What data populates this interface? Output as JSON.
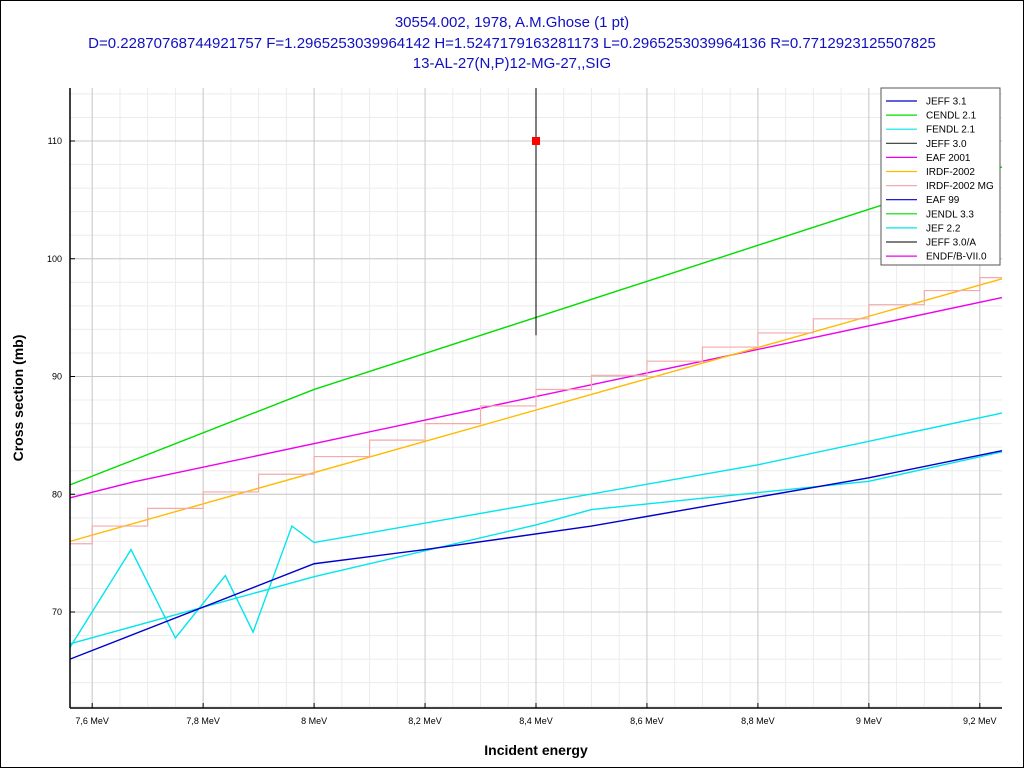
{
  "chart_data": {
    "type": "line",
    "title": [
      "30554.002, 1978, A.M.Ghose (1 pt)",
      "D=0.22870768744921757 F=1.2965253039964142 H=1.5247179163281173 L=0.2965253039964136 R=0.7712923125507825",
      "13-AL-27(N,P)12-MG-27,,SIG"
    ],
    "xlabel": "Incident energy",
    "ylabel": "Cross section (mb)",
    "xlim": [
      7.56,
      9.24
    ],
    "ylim": [
      61.85,
      114.5
    ],
    "xticks": [
      7.6,
      7.8,
      8.0,
      8.2,
      8.4,
      8.6,
      8.8,
      9.0,
      9.2
    ],
    "xtick_labels": [
      "7,6 MeV",
      "7,8 MeV",
      "8 MeV",
      "8,2 MeV",
      "8,4 MeV",
      "8,6 MeV",
      "8,8 MeV",
      "9 MeV",
      "9,2 MeV"
    ],
    "yticks": [
      70,
      80,
      90,
      100,
      110
    ],
    "yticks_labels": [
      "70",
      "80",
      "90",
      "100",
      "110"
    ],
    "grid": true,
    "legend_position": "top-right",
    "legend": [
      {
        "name": "JEFF 3.1",
        "color": "#0000cc"
      },
      {
        "name": "CENDL 2.1",
        "color": "#00dd00"
      },
      {
        "name": "FENDL 2.1",
        "color": "#00e5ee"
      },
      {
        "name": "JEFF 3.0",
        "color": "#333333"
      },
      {
        "name": "EAF 2001",
        "color": "#ee00ee"
      },
      {
        "name": "IRDF-2002",
        "color": "#ffbb00"
      },
      {
        "name": "IRDF-2002 MG",
        "color": "#f4aaaa"
      },
      {
        "name": "EAF 99",
        "color": "#0000cc"
      },
      {
        "name": "JENDL 3.3",
        "color": "#00dd00"
      },
      {
        "name": "JEF 2.2",
        "color": "#00e5ee"
      },
      {
        "name": "JEFF 3.0/A",
        "color": "#333333"
      },
      {
        "name": "ENDF/B-VII.0",
        "color": "#ee00ee"
      }
    ],
    "series": [
      {
        "name": "CENDL 2.1",
        "color": "#00dd00",
        "x": [
          7.56,
          8.0,
          9.0,
          9.24
        ],
        "y": [
          80.8,
          88.9,
          104.2,
          107.8
        ]
      },
      {
        "name": "EAF 2001",
        "color": "#ee00ee",
        "x": [
          7.56,
          7.67,
          9.24
        ],
        "y": [
          79.7,
          81.0,
          96.7
        ]
      },
      {
        "name": "IRDF-2002",
        "color": "#ffbb00",
        "x": [
          7.56,
          9.24
        ],
        "y": [
          76.0,
          98.3
        ]
      },
      {
        "name": "IRDF-2002 MG",
        "color": "#f4aaaa",
        "step": true,
        "x": [
          7.56,
          7.6,
          7.7,
          7.8,
          7.9,
          8.0,
          8.1,
          8.2,
          8.3,
          8.4,
          8.5,
          8.6,
          8.7,
          8.8,
          8.9,
          9.0,
          9.1,
          9.2,
          9.24
        ],
        "y": [
          75.8,
          77.3,
          78.8,
          80.2,
          81.7,
          83.2,
          84.6,
          86.0,
          87.5,
          88.9,
          90.1,
          91.3,
          92.5,
          93.7,
          94.9,
          96.1,
          97.3,
          98.4,
          98.4
        ]
      },
      {
        "name": "FENDL 2.1",
        "color": "#00e5ee",
        "x": [
          7.56,
          7.67,
          7.75,
          7.84,
          7.89,
          7.96,
          8.0,
          8.8,
          9.24
        ],
        "y": [
          67.0,
          75.3,
          67.8,
          73.1,
          68.3,
          77.3,
          75.9,
          82.5,
          86.9
        ]
      },
      {
        "name": "JEF 2.2",
        "color": "#00e5ee",
        "x": [
          7.56,
          8.0,
          8.4,
          8.5,
          9.0,
          9.24
        ],
        "y": [
          67.3,
          73.0,
          77.4,
          78.7,
          81.1,
          83.6
        ]
      },
      {
        "name": "JEFF 3.1",
        "color": "#0000cc",
        "x": [
          7.56,
          8.0,
          8.2,
          8.5,
          9.0,
          9.24
        ],
        "y": [
          66.0,
          74.1,
          75.3,
          77.3,
          81.4,
          83.7
        ]
      }
    ],
    "points": [
      {
        "x": 8.4,
        "y": 110.0,
        "ymin": 93.5,
        "ymax": 114.5,
        "color": "#ff0000"
      }
    ]
  }
}
